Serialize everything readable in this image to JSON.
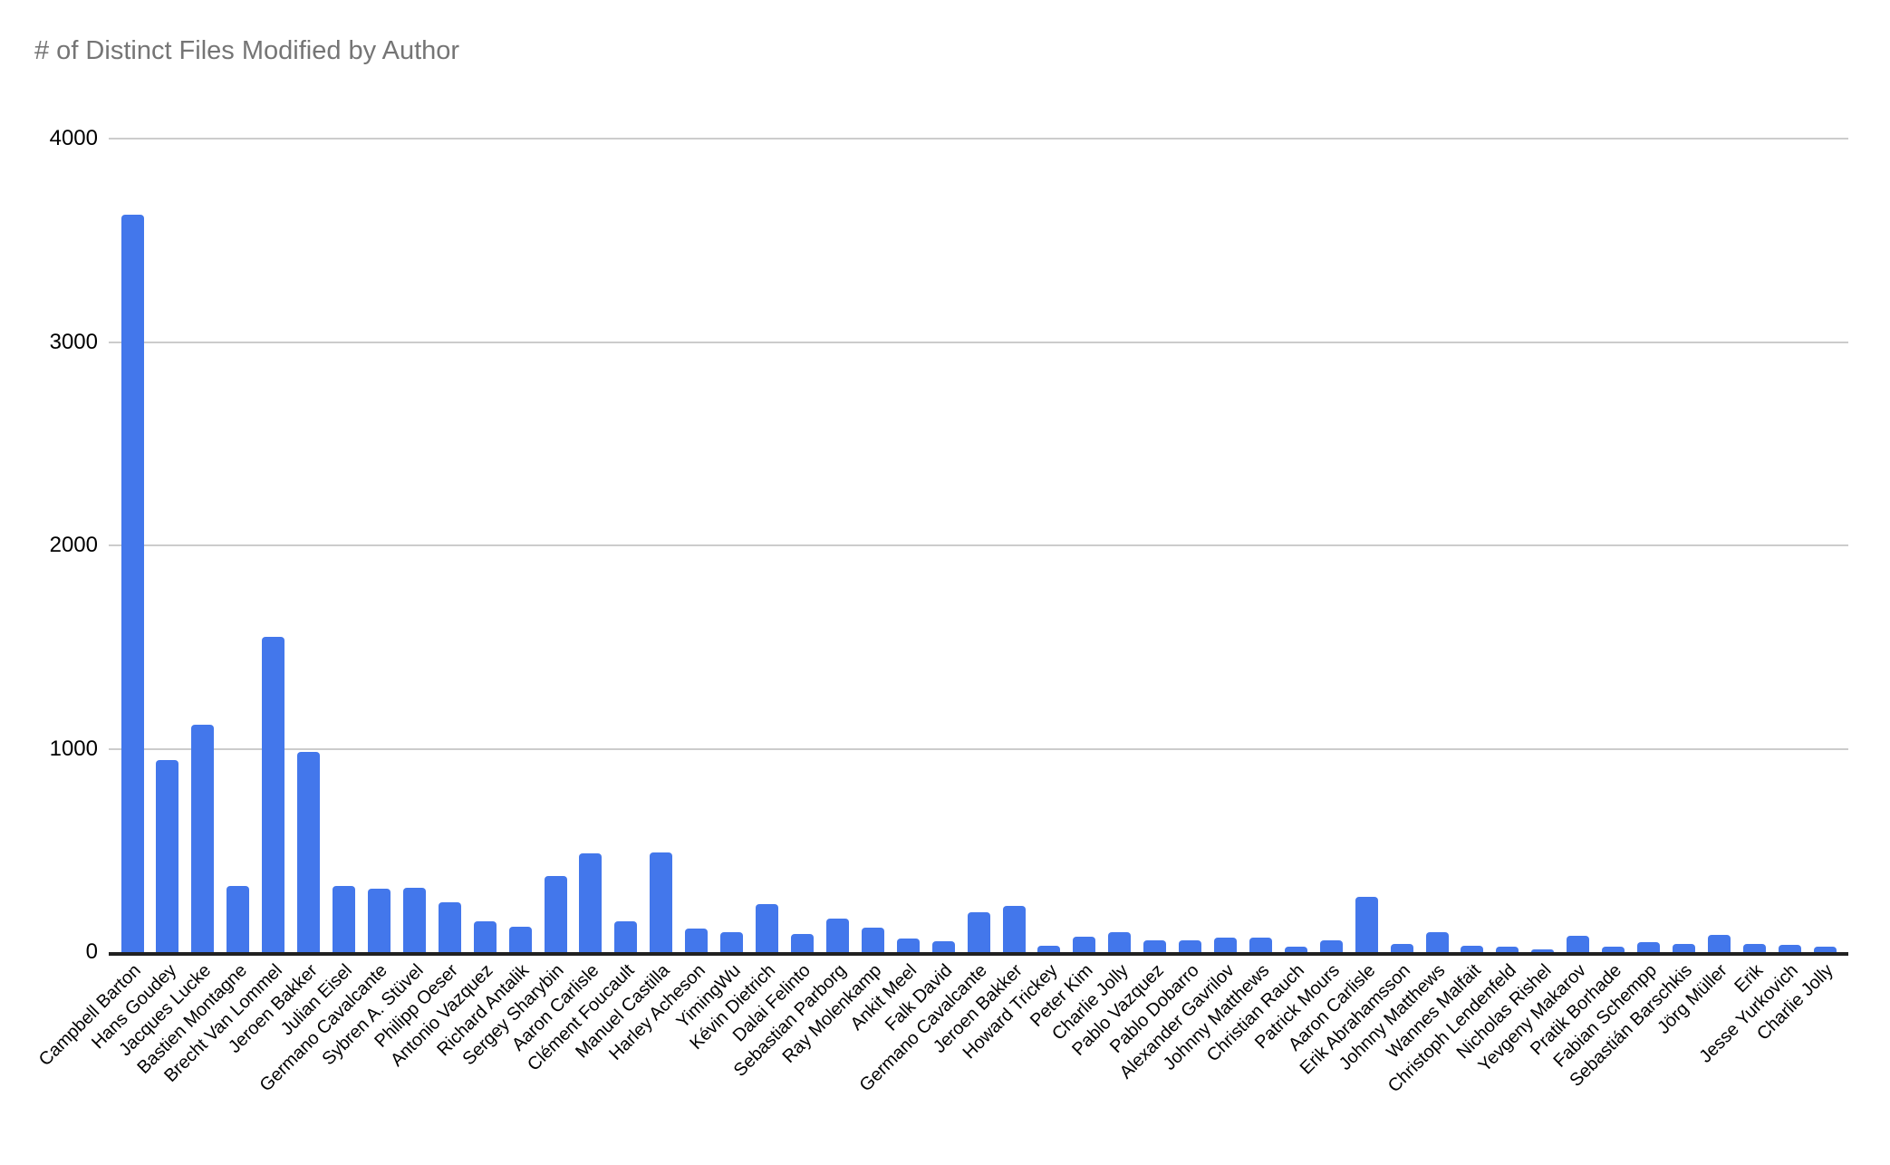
{
  "title": "# of Distinct Files Modified by Author",
  "colors": {
    "bar": "#4377eb",
    "title_text": "#757575",
    "axis_line": "#212121",
    "gridline": "#cccccc",
    "tick_text": "#000000",
    "background": "#ffffff"
  },
  "chart_data": {
    "type": "bar",
    "title": "# of Distinct Files Modified by Author",
    "xlabel": "",
    "ylabel": "",
    "ylim": [
      0,
      4000
    ],
    "yticks": [
      0,
      1000,
      2000,
      3000,
      4000
    ],
    "grid": true,
    "legend": "none",
    "categories": [
      "Campbell Barton",
      "Hans Goudey",
      "Jacques Lucke",
      "Bastien Montagne",
      "Brecht Van Lommel",
      "Jeroen Bakker",
      "Julian Eisel",
      "Germano Cavalcante",
      "Sybren A. Stüvel",
      "Philipp Oeser",
      "Antonio Vazquez",
      "Richard Antalik",
      "Sergey Sharybin",
      "Aaron Carlisle",
      "Clément Foucault",
      "Manuel Castilla",
      "Harley Acheson",
      "YimingWu",
      "Kévin Dietrich",
      "Dalai Felinto",
      "Sebastian Parborg",
      "Ray Molenkamp",
      "Ankit Meel",
      "Falk David",
      "Germano Cavalcante",
      "Jeroen Bakker",
      "Howard Trickey",
      "Peter Kim",
      "Charlie Jolly",
      "Pablo Vazquez",
      "Pablo Dobarro",
      "Alexander Gavrilov",
      "Johnny Matthews",
      "Christian Rauch",
      "Patrick Mours",
      "Aaron Carlisle",
      "Erik Abrahamsson",
      "Johnny Matthews",
      "Wannes Malfait",
      "Christoph Lendenfeld",
      "Nicholas Rishel",
      "Yevgeny Makarov",
      "Pratik Borhade",
      "Fabian Schempp",
      "Sebastián Barschkis",
      "Jörg Müller",
      "Erik",
      "Jesse Yurkovich",
      "Charlie Jolly"
    ],
    "values": [
      3625,
      945,
      1120,
      325,
      1550,
      985,
      325,
      310,
      315,
      245,
      150,
      125,
      375,
      485,
      150,
      490,
      115,
      100,
      235,
      90,
      165,
      120,
      65,
      55,
      195,
      225,
      30,
      75,
      100,
      60,
      60,
      70,
      70,
      25,
      60,
      270,
      40,
      100,
      30,
      25,
      15,
      80,
      25,
      50,
      40,
      85,
      40,
      35,
      25
    ]
  }
}
